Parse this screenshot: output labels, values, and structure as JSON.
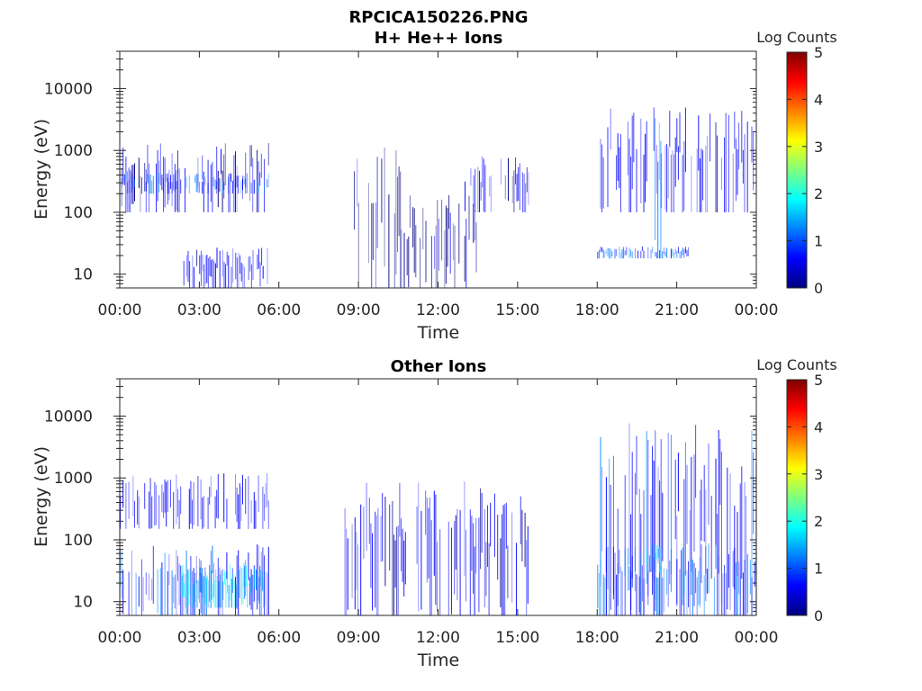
{
  "figure": {
    "title": "RPCICA150226.PNG"
  },
  "colors": {
    "colormap": [
      "#00007f",
      "#0000ff",
      "#007fff",
      "#00ffff",
      "#7fff7f",
      "#ffff00",
      "#ff7f00",
      "#ff0000",
      "#7f0000"
    ],
    "data_blue": "#0000b8",
    "axis": "#262626"
  },
  "chart_data": [
    {
      "type": "heatmap",
      "title": "H+ He++ Ions",
      "xlabel": "Time",
      "ylabel": "Energy (eV)",
      "x_ticks": [
        "00:00",
        "03:00",
        "06:00",
        "09:00",
        "12:00",
        "15:00",
        "18:00",
        "21:00",
        "00:00"
      ],
      "xlim_hours": [
        0,
        24
      ],
      "y_scale": "log",
      "y_ticks": [
        "10",
        "100",
        "1000",
        "10000"
      ],
      "ylim_eV": [
        6,
        40000
      ],
      "colorbar": {
        "label": "Log Counts",
        "range": [
          0,
          5
        ],
        "ticks": [
          "0",
          "1",
          "2",
          "3",
          "4",
          "5"
        ]
      },
      "activity": [
        {
          "t_start": 0.0,
          "t_end": 5.6,
          "e_low": 100,
          "e_high": 1400,
          "level": 0.5
        },
        {
          "t_start": 0.0,
          "t_end": 5.6,
          "e_low": 200,
          "e_high": 450,
          "level": 0.9
        },
        {
          "t_start": 2.4,
          "t_end": 5.6,
          "e_low": 6,
          "e_high": 28,
          "level": 0.6
        },
        {
          "t_start": 8.5,
          "t_end": 10.6,
          "e_low": 6,
          "e_high": 1500,
          "level": 0.3
        },
        {
          "t_start": 10.6,
          "t_end": 13.5,
          "e_low": 6,
          "e_high": 200,
          "level": 0.2
        },
        {
          "t_start": 13.0,
          "t_end": 15.4,
          "e_low": 100,
          "e_high": 800,
          "level": 0.4
        },
        {
          "t_start": 18.0,
          "t_end": 24.0,
          "e_low": 100,
          "e_high": 5000,
          "level": 0.6
        },
        {
          "t_start": 18.0,
          "t_end": 21.5,
          "e_low": 18,
          "e_high": 28,
          "level": 0.9
        },
        {
          "t_start": 20.0,
          "t_end": 20.4,
          "e_low": 18,
          "e_high": 5000,
          "level": 1.0
        }
      ]
    },
    {
      "type": "heatmap",
      "title": "Other Ions",
      "xlabel": "Time",
      "ylabel": "Energy (eV)",
      "x_ticks": [
        "00:00",
        "03:00",
        "06:00",
        "09:00",
        "12:00",
        "15:00",
        "18:00",
        "21:00",
        "00:00"
      ],
      "xlim_hours": [
        0,
        24
      ],
      "y_scale": "log",
      "y_ticks": [
        "10",
        "100",
        "1000",
        "10000"
      ],
      "ylim_eV": [
        6,
        40000
      ],
      "colorbar": {
        "label": "Log Counts",
        "range": [
          0,
          5
        ],
        "ticks": [
          "0",
          "1",
          "2",
          "3",
          "4",
          "5"
        ]
      },
      "activity": [
        {
          "t_start": 0.0,
          "t_end": 5.6,
          "e_low": 150,
          "e_high": 1200,
          "level": 0.6
        },
        {
          "t_start": 0.0,
          "t_end": 5.6,
          "e_low": 6,
          "e_high": 90,
          "level": 0.8
        },
        {
          "t_start": 2.3,
          "t_end": 5.5,
          "e_low": 8,
          "e_high": 40,
          "level": 1.6
        },
        {
          "t_start": 8.2,
          "t_end": 15.4,
          "e_low": 6,
          "e_high": 900,
          "level": 0.5
        },
        {
          "t_start": 18.0,
          "t_end": 24.0,
          "e_low": 6,
          "e_high": 8000,
          "level": 0.7
        },
        {
          "t_start": 18.0,
          "t_end": 24.0,
          "e_low": 6,
          "e_high": 90,
          "level": 1.0
        },
        {
          "t_start": 19.8,
          "t_end": 20.4,
          "e_low": 30,
          "e_high": 90,
          "level": 1.6
        }
      ]
    }
  ]
}
